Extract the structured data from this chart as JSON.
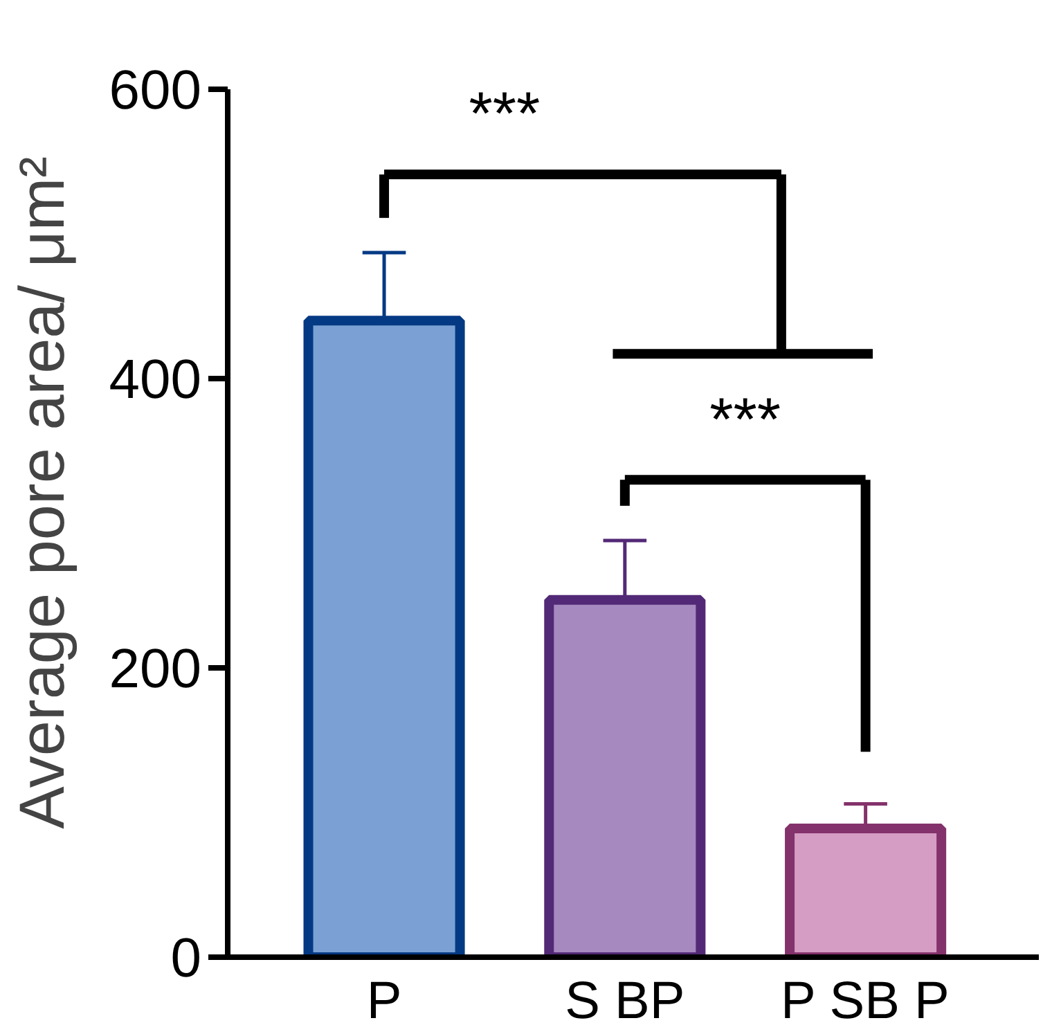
{
  "chart_data": {
    "type": "bar",
    "ylabel": "Average pore area/ μm²",
    "categories": [
      "P",
      "S BP",
      "P SB P"
    ],
    "values": [
      440,
      247,
      89
    ],
    "errors": [
      [
        440,
        487
      ],
      [
        247,
        288
      ],
      [
        89,
        106
      ]
    ],
    "colors": [
      "#7ba0d4",
      "#a689bf",
      "#d59cc4"
    ],
    "ylim": [
      0,
      600
    ],
    "yticks": [
      0,
      200,
      400,
      600
    ],
    "annotations": [
      "***",
      "***"
    ],
    "grid": false
  }
}
